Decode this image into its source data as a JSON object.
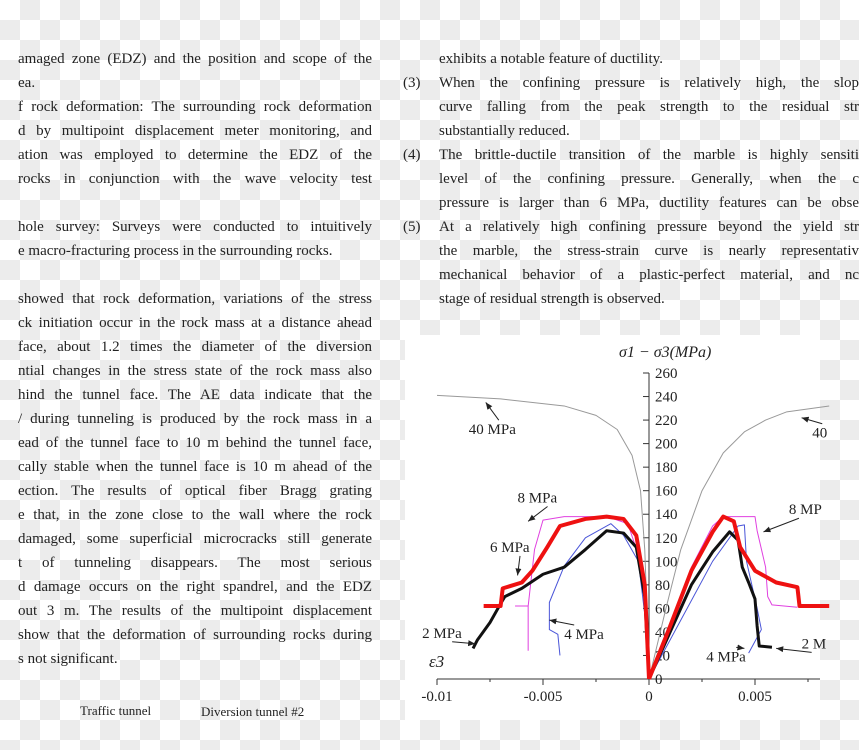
{
  "left_column": {
    "lines": [
      {
        "text": "amaged zone (EDZ) and the position and scope of the",
        "justify": true
      },
      {
        "text": "ea.",
        "justify": false
      },
      {
        "text": "f rock deformation: The surrounding rock deformation",
        "justify": true
      },
      {
        "text": "d by multipoint displacement meter monitoring, and",
        "justify": true
      },
      {
        "text": "ation was employed to determine the EDZ of the",
        "justify": true
      },
      {
        "text": "rocks in conjunction with the wave velocity test",
        "justify": true
      },
      {
        "text": "",
        "justify": false
      },
      {
        "text": "hole survey: Surveys were conducted to intuitively",
        "justify": true
      },
      {
        "text": "e macro-fracturing process in the surrounding rocks.",
        "justify": false
      },
      {
        "text": "",
        "justify": false
      },
      {
        "text": "showed that rock deformation, variations of the stress",
        "justify": true
      },
      {
        "text": "ck initiation occur in the rock mass at a distance ahead",
        "justify": true
      },
      {
        "text": "face, about 1.2 times the diameter of the diversion",
        "justify": true
      },
      {
        "text": "ntial changes in the stress state of the rock mass also",
        "justify": true
      },
      {
        "text": "hind the tunnel face. The AE data indicate that the",
        "justify": true
      },
      {
        "text": "/ during tunneling is produced by the rock mass in a",
        "justify": true
      },
      {
        "text": "ead of the tunnel face to 10 m behind the tunnel face,",
        "justify": true
      },
      {
        "text": "cally stable when the tunnel face is 10 m ahead of the",
        "justify": true
      },
      {
        "text": "ection. The results of optical fiber Bragg grating",
        "justify": true
      },
      {
        "text": "e that, in the zone close to the wall where the rock",
        "justify": true
      },
      {
        "text": "damaged, some superficial microcracks still generate",
        "justify": true
      },
      {
        "text": "t of tunneling disappears. The most serious",
        "justify": true
      },
      {
        "text": "d damage occurs on the right spandrel, and the EDZ",
        "justify": true
      },
      {
        "text": "out 3 m. The results of the multipoint displacement",
        "justify": true
      },
      {
        "text": "show that the deformation of surrounding rocks during",
        "justify": true
      },
      {
        "text": "s not significant.",
        "justify": false
      }
    ],
    "captions": [
      "Traffic tunnel",
      "Diversion tunnel #2"
    ]
  },
  "right_column": {
    "lines": [
      {
        "num": "",
        "text": "exhibits a notable feature of ductility.",
        "justify": false
      },
      {
        "num": "(3)",
        "text": "When the confining pressure is relatively high, the slop",
        "justify": true
      },
      {
        "num": "",
        "text": "curve falling from the peak strength to the residual str",
        "justify": true
      },
      {
        "num": "",
        "text": "substantially reduced.",
        "justify": false
      },
      {
        "num": "(4)",
        "text": "The brittle-ductile transition of the marble is highly sensiti",
        "justify": true
      },
      {
        "num": "",
        "text": "level of the confining pressure. Generally, when the c",
        "justify": true
      },
      {
        "num": "",
        "text": "pressure is larger than 6 MPa, ductility features can be obse",
        "justify": true
      },
      {
        "num": "(5)",
        "text": "At a relatively high confining pressure beyond the yield str",
        "justify": true
      },
      {
        "num": "",
        "text": "the marble, the stress-strain curve is nearly representativ",
        "justify": true
      },
      {
        "num": "",
        "text": "mechanical behavior of a plastic-perfect material, and nc",
        "justify": true
      },
      {
        "num": "",
        "text": "stage of residual strength is observed.",
        "justify": false
      }
    ]
  },
  "chart_data": {
    "type": "line",
    "ylabel": "σ1 − σ3(MPa)",
    "xlabel_left": "ε3",
    "xlim": [
      -0.01,
      0.0085
    ],
    "ylim": [
      0,
      260
    ],
    "xticks": [
      -0.01,
      -0.005,
      0,
      0.005
    ],
    "xtick_labels": [
      "-0.01",
      "-0.005",
      "0",
      "0.005"
    ],
    "yticks": [
      0,
      20,
      40,
      60,
      80,
      100,
      120,
      140,
      160,
      180,
      200,
      220,
      240,
      260
    ],
    "ytick_labels": [
      "0",
      "20",
      "40",
      "60",
      "80",
      "100",
      "120",
      "140",
      "160",
      "180",
      "200",
      "220",
      "240",
      "260"
    ],
    "series": [
      {
        "name": "40 MPa",
        "color": "#999999",
        "width": 1,
        "left": [
          [
            -0.01,
            241
          ],
          [
            -0.007,
            238
          ],
          [
            -0.004,
            232
          ],
          [
            -0.0025,
            224
          ],
          [
            -0.0015,
            212
          ],
          [
            -0.0008,
            190
          ],
          [
            -0.0004,
            160
          ],
          [
            -0.0002,
            110
          ],
          [
            -0.0001,
            60
          ],
          [
            0,
            0
          ]
        ],
        "right": [
          [
            0,
            0
          ],
          [
            0.0008,
            60
          ],
          [
            0.0015,
            110
          ],
          [
            0.0025,
            160
          ],
          [
            0.0035,
            192
          ],
          [
            0.0045,
            210
          ],
          [
            0.0055,
            220
          ],
          [
            0.0065,
            227
          ],
          [
            0.0085,
            232
          ]
        ]
      },
      {
        "name": "8 MPa (magenta)",
        "color": "#e040e0",
        "width": 1,
        "left": [
          [
            -0.0057,
            24
          ],
          [
            -0.0057,
            62
          ],
          [
            -0.0063,
            62
          ],
          [
            -0.0057,
            62
          ],
          [
            -0.0054,
            110
          ],
          [
            -0.005,
            135
          ],
          [
            -0.004,
            138
          ],
          [
            -0.002,
            138
          ],
          [
            -0.001,
            132
          ],
          [
            -0.0004,
            100
          ],
          [
            -0.0001,
            40
          ],
          [
            0,
            0
          ]
        ],
        "right": [
          [
            0,
            0
          ],
          [
            0.001,
            45
          ],
          [
            0.002,
            95
          ],
          [
            0.003,
            130
          ],
          [
            0.0035,
            138
          ],
          [
            0.005,
            138
          ],
          [
            0.0051,
            126
          ],
          [
            0.0055,
            95
          ],
          [
            0.0056,
            70
          ],
          [
            0.0058,
            63
          ],
          [
            0.007,
            61
          ]
        ]
      },
      {
        "name": "4 MPa",
        "color": "#4a55d8",
        "width": 1,
        "left": [
          [
            -0.0042,
            20
          ],
          [
            -0.0043,
            38
          ],
          [
            -0.0047,
            42
          ],
          [
            -0.0047,
            65
          ],
          [
            -0.004,
            96
          ],
          [
            -0.003,
            120
          ],
          [
            -0.0018,
            132
          ],
          [
            -0.0012,
            122
          ],
          [
            -0.0005,
            100
          ],
          [
            -0.0001,
            40
          ],
          [
            0,
            0
          ]
        ],
        "right": [
          [
            0,
            0
          ],
          [
            0.0015,
            50
          ],
          [
            0.003,
            100
          ],
          [
            0.0042,
            130
          ],
          [
            0.0045,
            131
          ],
          [
            0.0046,
            100
          ],
          [
            0.0051,
            60
          ],
          [
            0.0053,
            42
          ],
          [
            0.0047,
            22
          ]
        ]
      },
      {
        "name": "6 MPa / 2 MPa",
        "color": "#111111",
        "width": 3,
        "left": [
          [
            -0.0083,
            26
          ],
          [
            -0.0081,
            33
          ],
          [
            -0.0075,
            48
          ],
          [
            -0.007,
            64
          ],
          [
            -0.0068,
            70
          ],
          [
            -0.006,
            77
          ],
          [
            -0.005,
            89
          ],
          [
            -0.004,
            95
          ],
          [
            -0.003,
            110
          ],
          [
            -0.002,
            126
          ],
          [
            -0.0012,
            124
          ],
          [
            -0.0006,
            112
          ],
          [
            -0.0002,
            70
          ],
          [
            0,
            0
          ]
        ],
        "right": [
          [
            0,
            0
          ],
          [
            0.001,
            40
          ],
          [
            0.002,
            80
          ],
          [
            0.003,
            108
          ],
          [
            0.0038,
            125
          ],
          [
            0.0042,
            118
          ],
          [
            0.0044,
            95
          ],
          [
            0.0047,
            82
          ],
          [
            0.005,
            68
          ],
          [
            0.0051,
            45
          ],
          [
            0.0052,
            28
          ],
          [
            0.0058,
            27
          ]
        ]
      },
      {
        "name": "8 MPa",
        "color": "#ee1111",
        "width": 4,
        "left": [
          [
            -0.0078,
            62
          ],
          [
            -0.007,
            62
          ],
          [
            -0.0069,
            77
          ],
          [
            -0.006,
            82
          ],
          [
            -0.0055,
            92
          ],
          [
            -0.0048,
            112
          ],
          [
            -0.0042,
            130
          ],
          [
            -0.003,
            136
          ],
          [
            -0.002,
            138
          ],
          [
            -0.0012,
            136
          ],
          [
            -0.0006,
            122
          ],
          [
            -0.0002,
            80
          ],
          [
            0,
            0
          ]
        ],
        "right": [
          [
            0,
            0
          ],
          [
            0.001,
            45
          ],
          [
            0.002,
            92
          ],
          [
            0.003,
            125
          ],
          [
            0.0035,
            138
          ],
          [
            0.004,
            134
          ],
          [
            0.0043,
            112
          ],
          [
            0.005,
            92
          ],
          [
            0.006,
            82
          ],
          [
            0.007,
            78
          ],
          [
            0.0071,
            62
          ],
          [
            0.0085,
            62
          ]
        ]
      }
    ],
    "annotations": [
      {
        "text": "40 MPa",
        "at": [
          -0.0085,
          208
        ],
        "arrow_to": [
          -0.0077,
          235
        ]
      },
      {
        "text": "8 MPa",
        "at": [
          -0.0062,
          150
        ],
        "arrow_to": [
          -0.0057,
          134
        ]
      },
      {
        "text": "6 MPa",
        "at": [
          -0.0075,
          108
        ],
        "arrow_to": [
          -0.0062,
          88
        ]
      },
      {
        "text": "2 MPa",
        "at": [
          -0.0107,
          35
        ],
        "arrow_to": [
          -0.0082,
          30
        ]
      },
      {
        "text": "4 MPa",
        "at": [
          -0.004,
          34
        ],
        "arrow_to": [
          -0.0047,
          50
        ]
      },
      {
        "text": "40",
        "at": [
          0.0077,
          205
        ],
        "arrow_to": [
          0.0072,
          222
        ]
      },
      {
        "text": "8 MP",
        "at": [
          0.0066,
          140
        ],
        "arrow_to": [
          0.0054,
          125
        ]
      },
      {
        "text": "4 MPa",
        "at": [
          0.0027,
          15
        ],
        "arrow_to": [
          0.0045,
          26
        ]
      },
      {
        "text": "2 M",
        "at": [
          0.0072,
          26
        ],
        "arrow_to": [
          0.006,
          26
        ]
      }
    ]
  }
}
